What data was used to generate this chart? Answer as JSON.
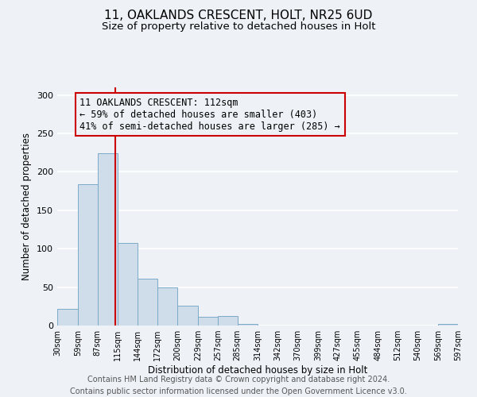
{
  "title1": "11, OAKLANDS CRESCENT, HOLT, NR25 6UD",
  "title2": "Size of property relative to detached houses in Holt",
  "xlabel": "Distribution of detached houses by size in Holt",
  "ylabel": "Number of detached properties",
  "bin_edges": [
    30,
    59,
    87,
    115,
    144,
    172,
    200,
    229,
    257,
    285,
    314,
    342,
    370,
    399,
    427,
    455,
    484,
    512,
    540,
    569,
    597
  ],
  "counts": [
    22,
    184,
    224,
    107,
    61,
    50,
    26,
    11,
    12,
    2,
    0,
    0,
    0,
    0,
    0,
    0,
    0,
    0,
    0,
    2
  ],
  "bar_color": "#cfdcea",
  "bar_edge_color": "#7aaac8",
  "property_line_x": 112,
  "property_line_color": "#cc0000",
  "annotation_box_edge_color": "#cc0000",
  "annotation_text_line1": "11 OAKLANDS CRESCENT: 112sqm",
  "annotation_text_line2": "← 59% of detached houses are smaller (403)",
  "annotation_text_line3": "41% of semi-detached houses are larger (285) →",
  "annotation_fontsize": 8.5,
  "annotation_font": "monospace",
  "ylim": [
    0,
    310
  ],
  "xlim": [
    30,
    597
  ],
  "yticks": [
    0,
    50,
    100,
    150,
    200,
    250,
    300
  ],
  "xtick_labels": [
    "30sqm",
    "59sqm",
    "87sqm",
    "115sqm",
    "144sqm",
    "172sqm",
    "200sqm",
    "229sqm",
    "257sqm",
    "285sqm",
    "314sqm",
    "342sqm",
    "370sqm",
    "399sqm",
    "427sqm",
    "455sqm",
    "484sqm",
    "512sqm",
    "540sqm",
    "569sqm",
    "597sqm"
  ],
  "footer_line1": "Contains HM Land Registry data © Crown copyright and database right 2024.",
  "footer_line2": "Contains public sector information licensed under the Open Government Licence v3.0.",
  "background_color": "#eef2f7",
  "grid_color": "#ffffff",
  "title_fontsize": 11,
  "subtitle_fontsize": 9.5,
  "axis_label_fontsize": 8.5,
  "footer_fontsize": 7,
  "ytick_fontsize": 8,
  "xtick_fontsize": 7
}
